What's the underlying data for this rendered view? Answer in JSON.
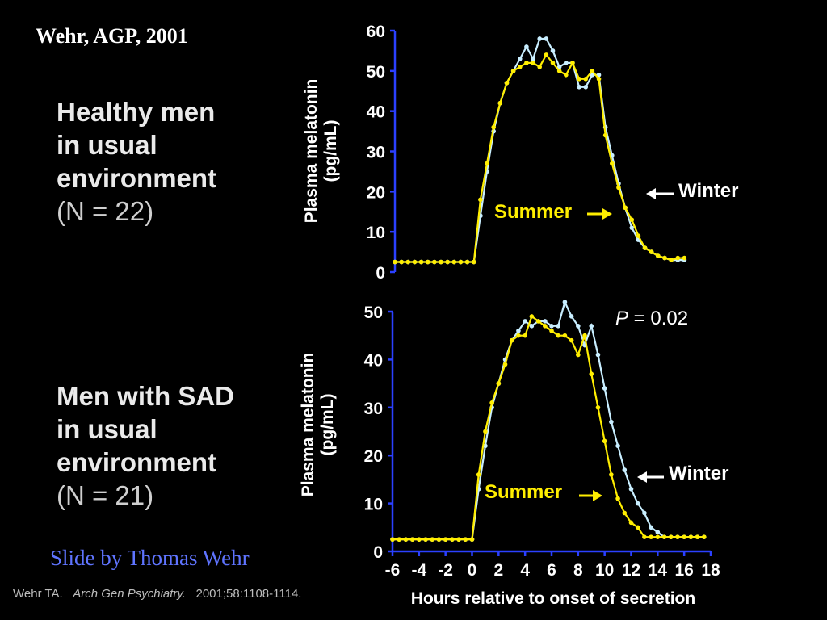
{
  "header": {
    "citation": "Wehr, AGP, 2001"
  },
  "groups": [
    {
      "line1": "Healthy men",
      "line2": "in usual",
      "line3": "environment",
      "n_label": "(N = 22)"
    },
    {
      "line1": "Men with SAD",
      "line2": "in usual",
      "line3": "environment",
      "n_label": "(N = 21)"
    }
  ],
  "footer": {
    "credit": "Slide by Thomas Wehr",
    "ref_author": "Wehr TA.",
    "ref_journal": "Arch Gen Psychiatry.",
    "ref_details": "2001;58:1108-1114."
  },
  "colors": {
    "summer": "#ffee00",
    "winter": "#c8eeff",
    "axis": "#2b40ff",
    "background": "#000000",
    "text": "#ffffff"
  },
  "chart_data": [
    {
      "type": "line",
      "ylabel": "Plasma melatonin\n(pg/mL)",
      "xlabel": "",
      "xlim": [
        -6,
        18
      ],
      "ylim": [
        0,
        60
      ],
      "yticks": [
        0,
        10,
        20,
        30,
        40,
        50,
        60
      ],
      "annotation": "",
      "series": [
        {
          "name": "Winter",
          "color": "#c8eeff",
          "x": [
            -6,
            -5.5,
            -5,
            -4.5,
            -4,
            -3.5,
            -3,
            -2.5,
            -2,
            -1.5,
            -1,
            -0.5,
            0,
            0.5,
            1,
            1.5,
            2,
            2.5,
            3,
            3.5,
            4,
            4.5,
            5,
            5.5,
            6,
            6.5,
            7,
            7.5,
            8,
            8.5,
            9,
            9.5,
            10,
            10.5,
            11,
            11.5,
            12,
            12.5,
            13,
            13.5,
            14,
            14.5,
            15,
            15.5,
            16
          ],
          "values": [
            2.5,
            2.5,
            2.5,
            2.5,
            2.5,
            2.5,
            2.5,
            2.5,
            2.5,
            2.5,
            2.5,
            2.5,
            2.5,
            14,
            25,
            35,
            42,
            47,
            50,
            53,
            56,
            53,
            58,
            58,
            55,
            51,
            52,
            52,
            46,
            46,
            49,
            49,
            36,
            29,
            22,
            16,
            11,
            8,
            6,
            5,
            4,
            3.5,
            3,
            3,
            3
          ]
        },
        {
          "name": "Summer",
          "color": "#ffee00",
          "x": [
            -6,
            -5.5,
            -5,
            -4.5,
            -4,
            -3.5,
            -3,
            -2.5,
            -2,
            -1.5,
            -1,
            -0.5,
            0,
            0.5,
            1,
            1.5,
            2,
            2.5,
            3,
            3.5,
            4,
            4.5,
            5,
            5.5,
            6,
            6.5,
            7,
            7.5,
            8,
            8.5,
            9,
            9.5,
            10,
            10.5,
            11,
            11.5,
            12,
            12.5,
            13,
            13.5,
            14,
            14.5,
            15,
            15.5,
            16
          ],
          "values": [
            2.5,
            2.5,
            2.5,
            2.5,
            2.5,
            2.5,
            2.5,
            2.5,
            2.5,
            2.5,
            2.5,
            2.5,
            2.5,
            18,
            27,
            36,
            42,
            47,
            50,
            51,
            52,
            52,
            51,
            54,
            52,
            50,
            49,
            52,
            48,
            48,
            50,
            48,
            34,
            27,
            21,
            16,
            13,
            9,
            6,
            5,
            4,
            3.5,
            3,
            3.5,
            3.5
          ]
        }
      ],
      "callouts": {
        "winter": "Winter",
        "summer": "Summer"
      }
    },
    {
      "type": "line",
      "ylabel": "Plasma melatonin\n(pg/mL)",
      "xlabel": "Hours relative to onset of secretion",
      "xlim": [
        -6,
        18
      ],
      "ylim": [
        0,
        50
      ],
      "yticks": [
        0,
        10,
        20,
        30,
        40,
        50
      ],
      "xticks": [
        -6,
        -4,
        -2,
        0,
        2,
        4,
        6,
        8,
        10,
        12,
        14,
        16,
        18
      ],
      "annotation": "P = 0.02",
      "series": [
        {
          "name": "Winter",
          "color": "#c8eeff",
          "x": [
            -6,
            -5.5,
            -5,
            -4.5,
            -4,
            -3.5,
            -3,
            -2.5,
            -2,
            -1.5,
            -1,
            -0.5,
            0,
            0.5,
            1,
            1.5,
            2,
            2.5,
            3,
            3.5,
            4,
            4.5,
            5,
            5.5,
            6,
            6.5,
            7,
            7.5,
            8,
            8.5,
            9,
            9.5,
            10,
            10.5,
            11,
            11.5,
            12,
            12.5,
            13,
            13.5,
            14,
            14.5,
            15,
            15.5,
            16,
            16.5,
            17,
            17.5
          ],
          "values": [
            2.5,
            2.5,
            2.5,
            2.5,
            2.5,
            2.5,
            2.5,
            2.5,
            2.5,
            2.5,
            2.5,
            2.5,
            2.5,
            13,
            22,
            30,
            35,
            40,
            44,
            46,
            48,
            47,
            48,
            48,
            47,
            47,
            52,
            49,
            47,
            43,
            47,
            41,
            34,
            27,
            22,
            17,
            13,
            10,
            8,
            5,
            4,
            3,
            3,
            3,
            3,
            3,
            3,
            3
          ]
        },
        {
          "name": "Summer",
          "color": "#ffee00",
          "x": [
            -6,
            -5.5,
            -5,
            -4.5,
            -4,
            -3.5,
            -3,
            -2.5,
            -2,
            -1.5,
            -1,
            -0.5,
            0,
            0.5,
            1,
            1.5,
            2,
            2.5,
            3,
            3.5,
            4,
            4.5,
            5,
            5.5,
            6,
            6.5,
            7,
            7.5,
            8,
            8.5,
            9,
            9.5,
            10,
            10.5,
            11,
            11.5,
            12,
            12.5,
            13,
            13.5,
            14,
            14.5,
            15,
            15.5,
            16,
            16.5,
            17,
            17.5
          ],
          "values": [
            2.5,
            2.5,
            2.5,
            2.5,
            2.5,
            2.5,
            2.5,
            2.5,
            2.5,
            2.5,
            2.5,
            2.5,
            2.5,
            16,
            25,
            31,
            35,
            39,
            44,
            45,
            45,
            49,
            48,
            47,
            46,
            45,
            45,
            44,
            41,
            45,
            37,
            30,
            23,
            16,
            11,
            8,
            6,
            5,
            3,
            3,
            3,
            3,
            3,
            3,
            3,
            3,
            3,
            3
          ]
        }
      ],
      "callouts": {
        "winter": "Winter",
        "summer": "Summer"
      }
    }
  ]
}
